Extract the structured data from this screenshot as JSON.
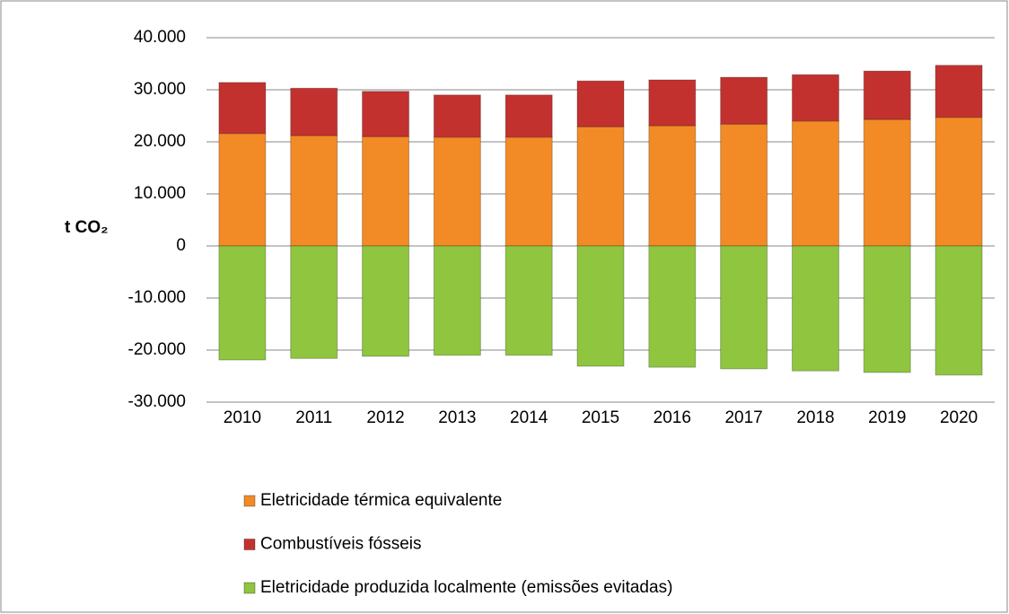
{
  "chart_data": {
    "type": "bar",
    "stacked": true,
    "y_label": "t CO₂",
    "categories": [
      "2010",
      "2011",
      "2012",
      "2013",
      "2014",
      "2015",
      "2016",
      "2017",
      "2018",
      "2019",
      "2020"
    ],
    "series": [
      {
        "name": "Eletricidade térmica equivalente",
        "color": "#f28a26",
        "values": [
          21600,
          21200,
          21000,
          20900,
          20900,
          22900,
          23100,
          23400,
          24000,
          24300,
          24700
        ]
      },
      {
        "name": "Combustíveis fósseis",
        "color": "#c3312f",
        "values": [
          9800,
          9100,
          8700,
          8100,
          8100,
          8800,
          8800,
          9000,
          8900,
          9300,
          10000
        ]
      },
      {
        "name": "Eletricidade produzida localmente (emissões evitadas)",
        "color": "#8fc53f",
        "values": [
          -21900,
          -21600,
          -21200,
          -21000,
          -21000,
          -23100,
          -23300,
          -23600,
          -24000,
          -24300,
          -24800
        ]
      }
    ],
    "ylim": [
      -30000,
      40000
    ],
    "yticks": [
      {
        "value": -30000,
        "label": "-30.000"
      },
      {
        "value": -20000,
        "label": "-20.000"
      },
      {
        "value": -10000,
        "label": "-10.000"
      },
      0,
      {
        "value": 10000,
        "label": "10.000"
      },
      {
        "value": 20000,
        "label": "20.000"
      },
      {
        "value": 30000,
        "label": "30.000"
      },
      {
        "value": 40000,
        "label": "40.000"
      }
    ],
    "grid": true,
    "legend": "bottom"
  }
}
